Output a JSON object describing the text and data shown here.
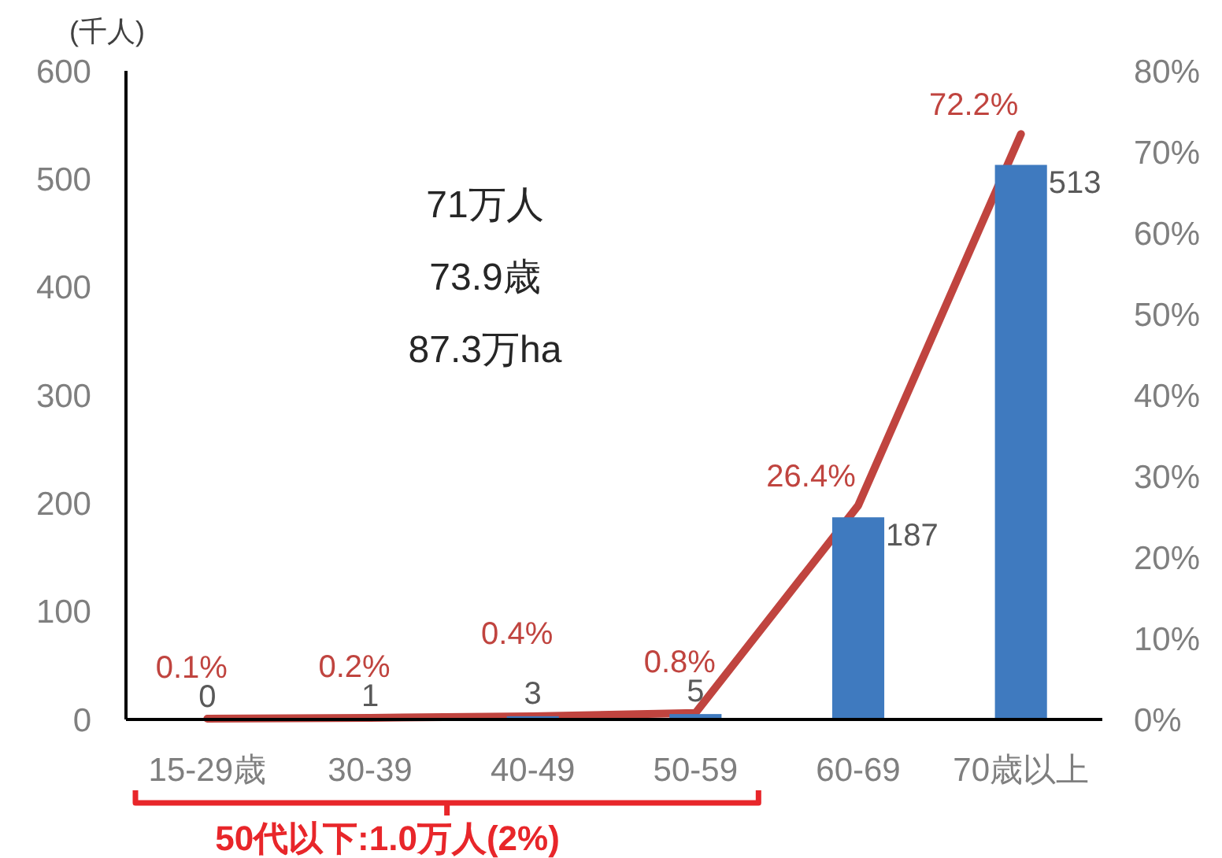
{
  "chart_data": {
    "type": "bar",
    "ylabel": "(千人)",
    "categories": [
      "15-29歳",
      "30-39",
      "40-49",
      "50-59",
      "60-69",
      "70歳以上"
    ],
    "series": [
      {
        "color": "#3f7abf",
        "values": [
          0,
          1,
          3,
          5,
          187,
          513
        ],
        "value_labels": [
          "0",
          "1",
          "3",
          "5",
          "187",
          "513"
        ]
      },
      {
        "type": "line",
        "axis": "y2",
        "color": "#c0443f",
        "values": [
          0.1,
          0.2,
          0.4,
          0.8,
          26.4,
          72.2
        ],
        "value_labels": [
          "0.1%",
          "0.2%",
          "0.4%",
          "0.8%",
          "26.4%",
          "72.2%"
        ]
      }
    ],
    "ylim": [
      0,
      600
    ],
    "yticks": [
      0,
      100,
      200,
      300,
      400,
      500,
      600
    ],
    "y2lim": [
      0,
      80
    ],
    "y2ticks": [
      {
        "value": 0,
        "label": "0%"
      },
      {
        "value": 10,
        "label": "10%"
      },
      {
        "value": 20,
        "label": "20%"
      },
      {
        "value": 30,
        "label": "30%"
      },
      {
        "value": 40,
        "label": "40%"
      },
      {
        "value": 50,
        "label": "50%"
      },
      {
        "value": 60,
        "label": "60%"
      },
      {
        "value": 70,
        "label": "70%"
      },
      {
        "value": 80,
        "label": "80%"
      }
    ],
    "annotations": [
      "71万人",
      "73.9歳",
      "87.3万ha",
      "50代以下:1.0万人(2%)"
    ],
    "grid": false
  }
}
